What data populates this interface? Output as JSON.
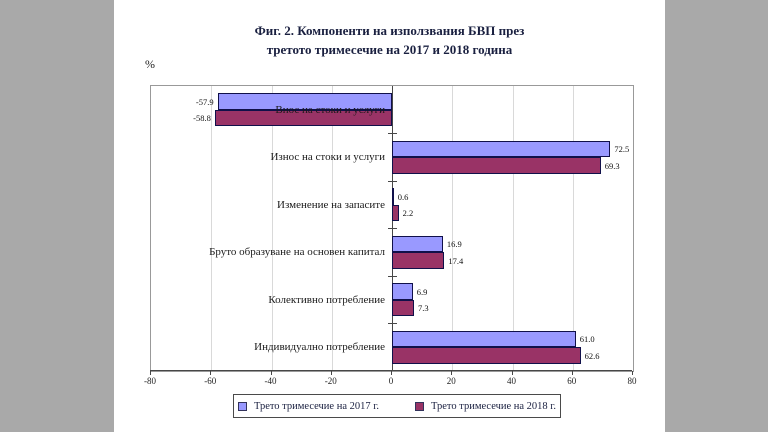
{
  "page": {
    "background_color": "#a9a9a9",
    "canvas_color": "#ffffff"
  },
  "title": {
    "line1": "Фиг. 2. Компоненти на използвания БВП през",
    "line2": "третото тримесечие на 2017 и 2018 година"
  },
  "axis_unit_label": "%",
  "chart_data": {
    "type": "bar",
    "orientation": "horizontal",
    "title": "Фиг. 2. Компоненти на използвания БВП през третото тримесечие на 2017 и 2018 година",
    "ylabel": "",
    "xlabel": "%",
    "categories": [
      "Внос на стоки и услуги",
      "Износ на стоки и услуги",
      "Изменение на запасите",
      "Бруто образуване на основен капитал",
      "Колективно потребление",
      "Индивидуално потребление"
    ],
    "series": [
      {
        "name": "Трето  тримесечие  на 2017 г.",
        "color": "#9999FF",
        "values": [
          -57.9,
          72.5,
          0.6,
          16.9,
          6.9,
          61.0
        ]
      },
      {
        "name": "Трето тримесечие на 2018 г.",
        "color": "#993366",
        "values": [
          -58.8,
          69.3,
          2.2,
          17.4,
          7.3,
          62.6
        ]
      }
    ],
    "xlim": [
      -80,
      80
    ],
    "x_ticks": [
      -80,
      -60,
      -40,
      -20,
      0,
      20,
      40,
      60,
      80
    ],
    "grid": true,
    "gridline_color": "#d9d9d9",
    "legend_position": "bottom",
    "value_labels_shown": true
  }
}
